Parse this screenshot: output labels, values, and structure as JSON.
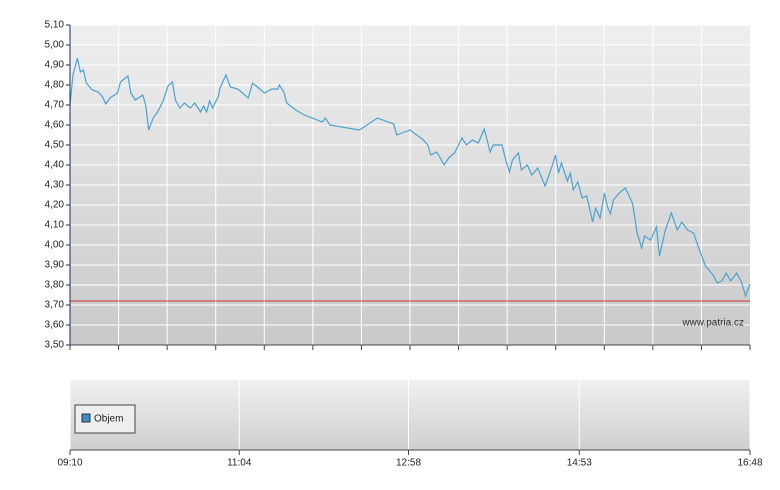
{
  "chart_data": {
    "type": "line",
    "x": [
      550,
      552,
      555,
      557,
      559,
      561,
      565,
      569,
      572,
      574,
      577,
      582,
      584,
      588,
      589,
      591,
      594,
      599,
      601,
      603,
      606,
      609,
      613,
      616,
      619,
      621,
      624,
      627,
      631,
      634,
      638,
      640,
      642,
      644,
      646,
      650,
      651,
      655,
      658,
      663,
      670,
      673,
      677,
      681,
      686,
      690,
      691,
      694,
      696,
      702,
      708,
      720,
      722,
      725,
      745,
      757,
      768,
      770,
      779,
      788,
      791,
      793,
      797,
      802,
      805,
      809,
      811,
      814,
      817,
      821,
      825,
      829,
      833,
      835,
      841,
      844,
      846,
      848,
      852,
      854,
      858,
      861,
      865,
      870,
      875,
      877,
      879,
      881,
      885,
      887,
      889,
      892,
      895,
      898,
      902,
      904,
      907,
      910,
      912,
      914,
      916,
      920,
      924,
      926,
      929,
      932,
      935,
      937,
      941,
      945,
      947,
      951,
      955,
      959,
      962,
      966,
      970,
      973,
      978,
      983,
      986,
      989,
      992,
      995,
      999,
      1002,
      1005,
      1008
    ],
    "values": [
      4.7,
      4.85,
      4.935,
      4.865,
      4.875,
      4.81,
      4.775,
      4.765,
      4.74,
      4.705,
      4.735,
      4.76,
      4.815,
      4.84,
      4.845,
      4.76,
      4.725,
      4.75,
      4.7,
      4.575,
      4.635,
      4.665,
      4.725,
      4.795,
      4.815,
      4.725,
      4.685,
      4.71,
      4.685,
      4.71,
      4.665,
      4.695,
      4.665,
      4.72,
      4.685,
      4.745,
      4.785,
      4.85,
      4.79,
      4.78,
      4.735,
      4.81,
      4.785,
      4.76,
      4.78,
      4.78,
      4.8,
      4.765,
      4.71,
      4.675,
      4.65,
      4.615,
      4.635,
      4.6,
      4.575,
      4.635,
      4.605,
      4.55,
      4.575,
      4.525,
      4.5,
      4.45,
      4.465,
      4.4,
      4.435,
      4.46,
      4.49,
      4.535,
      4.5,
      4.525,
      4.51,
      4.58,
      4.465,
      4.5,
      4.5,
      4.41,
      4.365,
      4.425,
      4.46,
      4.375,
      4.4,
      4.35,
      4.385,
      4.295,
      4.4,
      4.45,
      4.36,
      4.41,
      4.32,
      4.36,
      4.275,
      4.315,
      4.235,
      4.245,
      4.115,
      4.185,
      4.135,
      4.26,
      4.19,
      4.155,
      4.225,
      4.26,
      4.285,
      4.255,
      4.205,
      4.06,
      3.985,
      4.045,
      4.025,
      4.09,
      3.945,
      4.075,
      4.16,
      4.075,
      4.115,
      4.075,
      4.06,
      3.995,
      3.895,
      3.85,
      3.81,
      3.82,
      3.86,
      3.82,
      3.86,
      3.82,
      3.745,
      3.805
    ],
    "color": "#4aa3d0",
    "reference_line": {
      "value": 3.72,
      "color": "#d03030"
    },
    "xlim": [
      550,
      1008
    ],
    "xticks": [
      {
        "value": 550,
        "label": "09:10"
      },
      {
        "value": 664,
        "label": "11:04"
      },
      {
        "value": 778,
        "label": "12:58"
      },
      {
        "value": 893,
        "label": "14:53"
      },
      {
        "value": 1008,
        "label": "16:48"
      }
    ],
    "ylim": [
      3.5,
      5.1
    ],
    "yticks": [
      {
        "value": 3.5,
        "label": "3,50"
      },
      {
        "value": 3.6,
        "label": "3,60"
      },
      {
        "value": 3.7,
        "label": "3,70"
      },
      {
        "value": 3.8,
        "label": "3,80"
      },
      {
        "value": 3.9,
        "label": "3,90"
      },
      {
        "value": 4.0,
        "label": "4,00"
      },
      {
        "value": 4.1,
        "label": "4,10"
      },
      {
        "value": 4.2,
        "label": "4,20"
      },
      {
        "value": 4.3,
        "label": "4,30"
      },
      {
        "value": 4.4,
        "label": "4,40"
      },
      {
        "value": 4.5,
        "label": "4,50"
      },
      {
        "value": 4.6,
        "label": "4,60"
      },
      {
        "value": 4.7,
        "label": "4,70"
      },
      {
        "value": 4.8,
        "label": "4,80"
      },
      {
        "value": 4.9,
        "label": "4,90"
      },
      {
        "value": 5.0,
        "label": "5,00"
      },
      {
        "value": 5.1,
        "label": "5,10"
      }
    ],
    "grid": true,
    "watermark": "www.patria.cz",
    "volume_legend": {
      "name": "Objem",
      "color": "#3a8fc4"
    }
  }
}
